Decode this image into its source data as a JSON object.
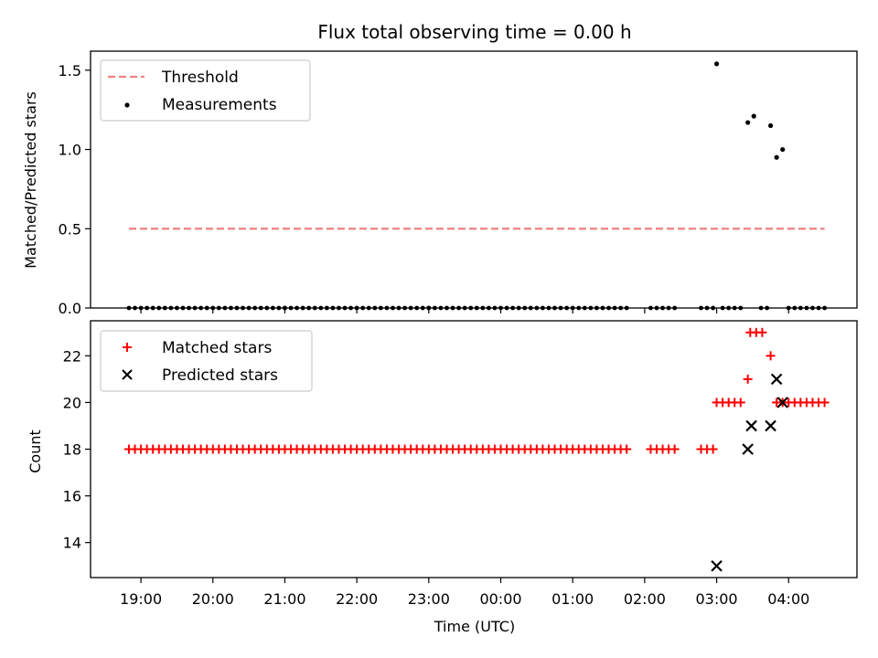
{
  "chart_data": [
    {
      "type": "scatter",
      "title": "Flux total observing time = 0.00 h",
      "xlabel": "",
      "ylabel": "Matched/Predicted stars",
      "xlim": [
        18.3,
        4.95
      ],
      "ylim": [
        0,
        1.62
      ],
      "yticks": [
        "0.0",
        "0.5",
        "1.0",
        "1.5"
      ],
      "yticks_values": [
        0,
        0.5,
        1.0,
        1.5
      ],
      "grid": false,
      "legend": {
        "placement": "top-left",
        "entries": [
          "Threshold",
          "Measurements"
        ]
      },
      "threshold": {
        "name": "Threshold",
        "value": 0.5,
        "x_range": [
          "18:50",
          "04:30"
        ],
        "color": "#f08080",
        "style": "dashed"
      },
      "series": [
        {
          "name": "Measurements",
          "color": "#000000",
          "marker": "dot",
          "points": [
            {
              "x": "03:00",
              "y": 1.54
            },
            {
              "x": "03:26",
              "y": 1.17
            },
            {
              "x": "03:31",
              "y": 1.21
            },
            {
              "x": "03:45",
              "y": 1.15
            },
            {
              "x": "03:50",
              "y": 0.95
            },
            {
              "x": "03:55",
              "y": 1.0
            }
          ],
          "zero_ranges": [
            [
              "18:50",
              "21:00"
            ],
            [
              "21:00",
              "23:00"
            ],
            [
              "23:00",
              "01:48"
            ],
            [
              "02:05",
              "02:27"
            ],
            [
              "02:47",
              "02:57"
            ],
            [
              "03:05",
              "03:24"
            ],
            [
              "03:37",
              "03:44"
            ],
            [
              "04:00",
              "04:30"
            ]
          ]
        }
      ]
    },
    {
      "type": "scatter",
      "title": "",
      "xlabel": "Time (UTC)",
      "ylabel": "Count",
      "xticks": [
        "19:00",
        "20:00",
        "21:00",
        "22:00",
        "23:00",
        "00:00",
        "01:00",
        "02:00",
        "03:00",
        "04:00"
      ],
      "ylim": [
        12.5,
        23.5
      ],
      "yticks": [
        "14",
        "16",
        "18",
        "20",
        "22"
      ],
      "yticks_values": [
        14,
        16,
        18,
        20,
        22
      ],
      "grid": false,
      "legend": {
        "placement": "top-left",
        "entries": [
          "Matched stars",
          "Predicted stars"
        ]
      },
      "series": [
        {
          "name": "Matched stars",
          "color": "#ff0000",
          "marker": "plus",
          "value_ranges": [
            {
              "from": "18:50",
              "to": "01:48",
              "y": 18
            },
            {
              "from": "02:05",
              "to": "02:27",
              "y": 18
            },
            {
              "from": "02:47",
              "to": "02:57",
              "y": 18
            },
            {
              "from": "03:00",
              "to": "03:20",
              "y": 20
            },
            {
              "from": "03:50",
              "to": "04:30",
              "y": 20
            }
          ],
          "points": [
            {
              "x": "03:26",
              "y": 21
            },
            {
              "x": "03:28",
              "y": 23
            },
            {
              "x": "03:33",
              "y": 23
            },
            {
              "x": "03:38",
              "y": 23
            },
            {
              "x": "03:45",
              "y": 22
            }
          ]
        },
        {
          "name": "Predicted stars",
          "color": "#000000",
          "marker": "x",
          "points": [
            {
              "x": "03:00",
              "y": 13
            },
            {
              "x": "03:26",
              "y": 18
            },
            {
              "x": "03:29",
              "y": 19
            },
            {
              "x": "03:45",
              "y": 19
            },
            {
              "x": "03:50",
              "y": 21
            },
            {
              "x": "03:55",
              "y": 20
            }
          ]
        }
      ]
    }
  ]
}
